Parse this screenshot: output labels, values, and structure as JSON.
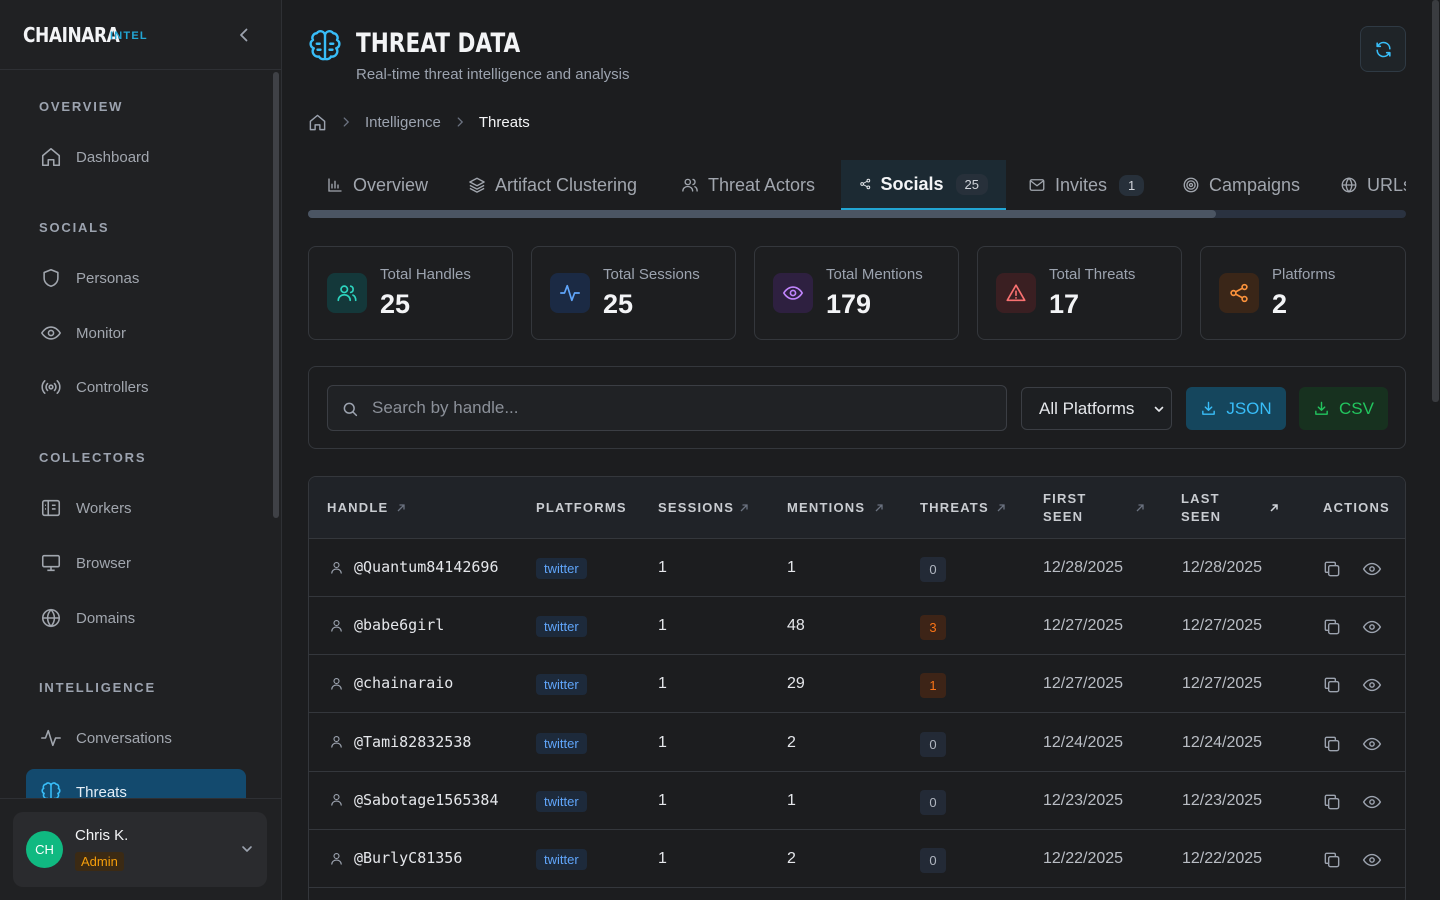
{
  "brand": {
    "name": "CHAINARA",
    "tag": "INTEL"
  },
  "sidebar": {
    "sections": [
      {
        "title": "OVERVIEW",
        "items": [
          {
            "label": "Dashboard",
            "icon": "home-icon"
          }
        ]
      },
      {
        "title": "SOCIALS",
        "items": [
          {
            "label": "Personas",
            "icon": "shield-icon"
          },
          {
            "label": "Monitor",
            "icon": "eye-icon"
          },
          {
            "label": "Controllers",
            "icon": "broadcast-icon"
          }
        ]
      },
      {
        "title": "COLLECTORS",
        "items": [
          {
            "label": "Workers",
            "icon": "worker-icon"
          },
          {
            "label": "Browser",
            "icon": "monitor-icon"
          },
          {
            "label": "Domains",
            "icon": "globe-icon"
          }
        ]
      },
      {
        "title": "INTELLIGENCE",
        "items": [
          {
            "label": "Conversations",
            "icon": "activity-icon"
          },
          {
            "label": "Threats",
            "icon": "brain-icon",
            "active": true
          }
        ]
      }
    ]
  },
  "user": {
    "initials": "CH",
    "name": "Chris K.",
    "role": "Admin"
  },
  "header": {
    "title": "THREAT DATA",
    "subtitle": "Real-time threat intelligence and analysis"
  },
  "breadcrumb": {
    "items": [
      "Intelligence",
      "Threats"
    ]
  },
  "tabs": [
    {
      "label": "Overview",
      "icon": "bar-chart-icon"
    },
    {
      "label": "Artifact Clustering",
      "icon": "layers-icon"
    },
    {
      "label": "Threat Actors",
      "icon": "users-icon"
    },
    {
      "label": "Socials",
      "icon": "share-icon",
      "count": "25",
      "active": true
    },
    {
      "label": "Invites",
      "icon": "mail-icon",
      "count": "1"
    },
    {
      "label": "Campaigns",
      "icon": "target-icon"
    },
    {
      "label": "URLs",
      "icon": "globe-icon"
    }
  ],
  "stats": [
    {
      "label": "Total Handles",
      "value": "25",
      "icon": "users-icon",
      "color": "#2dd4bf",
      "bg": "#14383a"
    },
    {
      "label": "Total Sessions",
      "value": "25",
      "icon": "activity-icon",
      "color": "#60a5fa",
      "bg": "#1b2a44"
    },
    {
      "label": "Total Mentions",
      "value": "179",
      "icon": "eye-icon",
      "color": "#c084fc",
      "bg": "#2e2040"
    },
    {
      "label": "Total Threats",
      "value": "17",
      "icon": "alert-triangle-icon",
      "color": "#f87171",
      "bg": "#3a1f22"
    },
    {
      "label": "Platforms",
      "value": "2",
      "icon": "share-icon",
      "color": "#fb923c",
      "bg": "#3a2618"
    }
  ],
  "filters": {
    "search_placeholder": "Search by handle...",
    "platform_select": "All Platforms",
    "json_label": "JSON",
    "csv_label": "CSV"
  },
  "table": {
    "columns": {
      "handle": "HANDLE",
      "platforms": "PLATFORMS",
      "sessions": "SESSIONS",
      "mentions": "MENTIONS",
      "threats": "THREATS",
      "first_seen_1": "FIRST",
      "first_seen_2": "SEEN",
      "last_seen_1": "LAST",
      "last_seen_2": "SEEN",
      "actions": "ACTIONS"
    },
    "rows": [
      {
        "handle": "@Quantum84142696",
        "platform": "twitter",
        "sessions": "1",
        "mentions": "1",
        "threats": "0",
        "first_seen": "12/28/2025",
        "last_seen": "12/28/2025"
      },
      {
        "handle": "@babe6girl",
        "platform": "twitter",
        "sessions": "1",
        "mentions": "48",
        "threats": "3",
        "first_seen": "12/27/2025",
        "last_seen": "12/27/2025"
      },
      {
        "handle": "@chainaraio",
        "platform": "twitter",
        "sessions": "1",
        "mentions": "29",
        "threats": "1",
        "first_seen": "12/27/2025",
        "last_seen": "12/27/2025"
      },
      {
        "handle": "@Tami82832538",
        "platform": "twitter",
        "sessions": "1",
        "mentions": "2",
        "threats": "0",
        "first_seen": "12/24/2025",
        "last_seen": "12/24/2025"
      },
      {
        "handle": "@Sabotage1565384",
        "platform": "twitter",
        "sessions": "1",
        "mentions": "1",
        "threats": "0",
        "first_seen": "12/23/2025",
        "last_seen": "12/23/2025"
      },
      {
        "handle": "@BurlyC81356",
        "platform": "twitter",
        "sessions": "1",
        "mentions": "2",
        "threats": "0",
        "first_seen": "12/22/2025",
        "last_seen": "12/22/2025"
      }
    ]
  },
  "colors": {
    "accent": "#22a6d4",
    "background": "#1c1d1f",
    "sidebar": "#202123",
    "active_nav": "#134a6e"
  }
}
